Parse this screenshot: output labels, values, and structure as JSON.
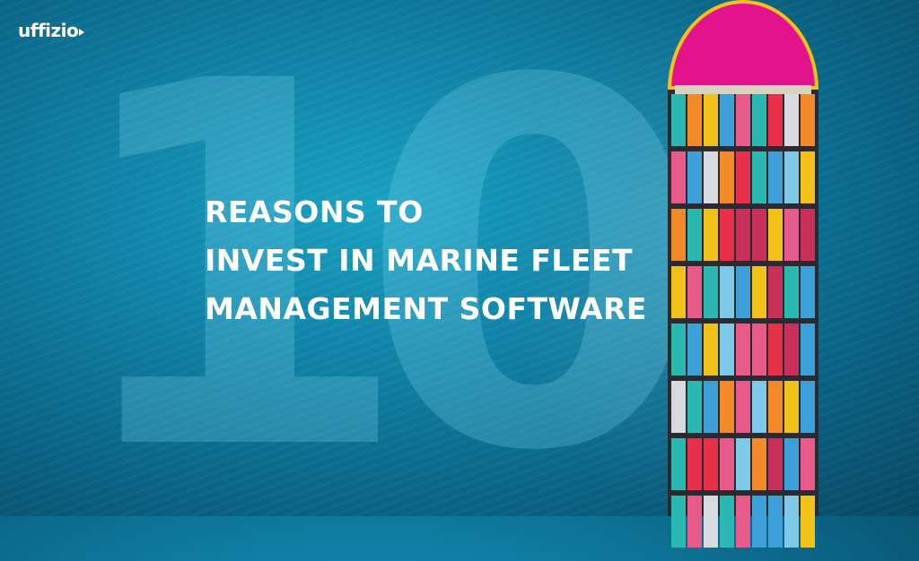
{
  "brand": {
    "logo_text": "uffizio"
  },
  "hero": {
    "number": "10",
    "lines": [
      "REASONS TO",
      "INVEST IN MARINE FLEET",
      "MANAGEMENT SOFTWARE"
    ]
  },
  "colors": {
    "ocean": "#0f7fa3",
    "accent_text": "#ffffff",
    "containers": [
      "#e8304a",
      "#f2c21b",
      "#3ea0d8",
      "#e85a8a",
      "#2bb8b0",
      "#f28a2a",
      "#7ec8e8",
      "#d9d9e0",
      "#c8325a"
    ]
  }
}
